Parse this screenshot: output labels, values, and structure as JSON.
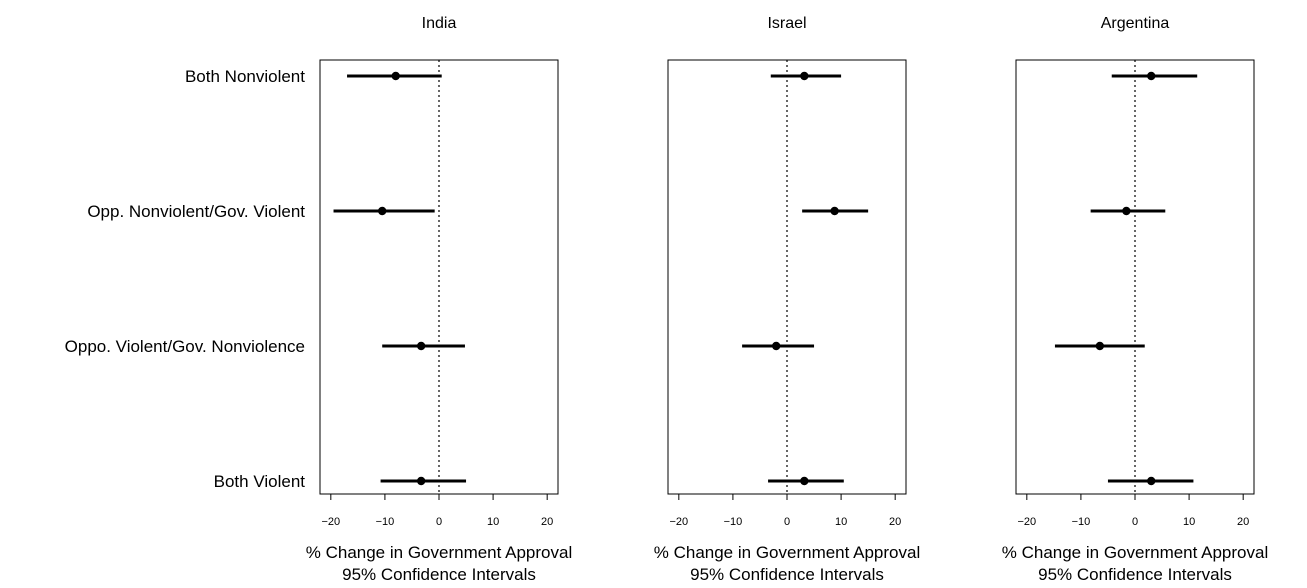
{
  "chart_data": {
    "type": "scatter",
    "categories": [
      "Both Nonviolent",
      "Opp. Nonviolent/Gov. Violent",
      "Oppo. Violent/Gov. Nonviolence",
      "Both Violent"
    ],
    "xlim": [
      -22,
      22
    ],
    "xticks": [
      -20,
      -10,
      0,
      10,
      20
    ],
    "xtick_labels": [
      "−20",
      "−10",
      "0",
      "10",
      "20"
    ],
    "reference_line": 0,
    "xlabel": "% Change in Government Approval",
    "xlabel2": "95% Confidence Intervals",
    "grid": false,
    "panels": [
      {
        "title": "India",
        "points": [
          {
            "category": "Both Nonviolent",
            "estimate": -8,
            "lower": -17,
            "upper": 0.5
          },
          {
            "category": "Opp. Nonviolent/Gov. Violent",
            "estimate": -10.5,
            "lower": -19.5,
            "upper": -0.8
          },
          {
            "category": "Oppo. Violent/Gov. Nonviolence",
            "estimate": -3.3,
            "lower": -10.5,
            "upper": 4.8
          },
          {
            "category": "Both Violent",
            "estimate": -3.3,
            "lower": -10.8,
            "upper": 5.0
          }
        ]
      },
      {
        "title": "Israel",
        "points": [
          {
            "category": "Both Nonviolent",
            "estimate": 3.2,
            "lower": -3,
            "upper": 10
          },
          {
            "category": "Opp. Nonviolent/Gov. Violent",
            "estimate": 8.8,
            "lower": 2.8,
            "upper": 15
          },
          {
            "category": "Oppo. Violent/Gov. Nonviolence",
            "estimate": -2,
            "lower": -8.3,
            "upper": 5
          },
          {
            "category": "Both Violent",
            "estimate": 3.2,
            "lower": -3.5,
            "upper": 10.5
          }
        ]
      },
      {
        "title": "Argentina",
        "points": [
          {
            "category": "Both Nonviolent",
            "estimate": 3,
            "lower": -4.3,
            "upper": 11.5
          },
          {
            "category": "Opp. Nonviolent/Gov. Violent",
            "estimate": -1.6,
            "lower": -8.2,
            "upper": 5.6
          },
          {
            "category": "Oppo. Violent/Gov. Nonviolence",
            "estimate": -6.5,
            "lower": -14.8,
            "upper": 1.8
          },
          {
            "category": "Both Violent",
            "estimate": 3,
            "lower": -5,
            "upper": 10.8
          }
        ]
      }
    ]
  }
}
